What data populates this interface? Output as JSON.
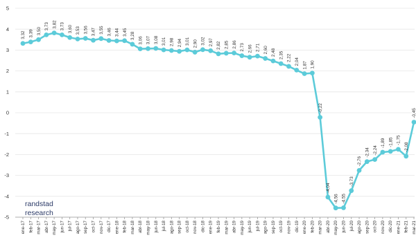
{
  "chart_data": {
    "type": "line",
    "color": "#5ccbd9",
    "categories": [
      "ene-17",
      "feb-17",
      "mar-17",
      "abr-17",
      "may-17",
      "jun-17",
      "jul-17",
      "ago-17",
      "sep-17",
      "oct-17",
      "nov-17",
      "dic-17",
      "ene-18",
      "feb-18",
      "mar-18",
      "abr-18",
      "may-18",
      "jun-18",
      "jul-18",
      "ago-18",
      "sep-18",
      "oct-18",
      "nov-18",
      "dic-18",
      "ene-19",
      "feb-19",
      "mar-19",
      "abr-19",
      "may-19",
      "jun-19",
      "jul-19",
      "ago-19",
      "sep-19",
      "oct-19",
      "nov-19",
      "dic-19",
      "ene-20",
      "feb-20",
      "mar-20",
      "abr-20",
      "may-20",
      "jun-20",
      "jul-20",
      "ago-20",
      "sep-20",
      "oct-20",
      "nov-20",
      "dic-20",
      "ene-21",
      "feb-21",
      "mar-21"
    ],
    "values": [
      3.32,
      3.39,
      3.5,
      3.73,
      3.82,
      3.73,
      3.6,
      3.53,
      3.56,
      3.47,
      3.55,
      3.46,
      3.44,
      3.45,
      3.28,
      3.06,
      3.07,
      3.08,
      3.01,
      2.98,
      2.94,
      3.01,
      2.9,
      3.02,
      2.97,
      2.82,
      2.85,
      2.86,
      2.73,
      2.66,
      2.71,
      2.6,
      2.48,
      2.35,
      2.22,
      2.04,
      1.87,
      1.9,
      -0.22,
      -4.04,
      -4.56,
      -4.55,
      -3.73,
      -2.76,
      -2.34,
      -2.24,
      -1.89,
      -1.85,
      -1.75,
      -2.08,
      -0.45
    ],
    "labels": [
      "3,32",
      "3,39",
      "3,50",
      "3,73",
      "3,82",
      "3,73",
      "3,60",
      "3,53",
      "3,56",
      "3,47",
      "3,55",
      "3,46",
      "3,44",
      "3,45",
      "3,28",
      "3,06",
      "3,07",
      "3,08",
      "3,01",
      "2,98",
      "2,94",
      "3,01",
      "2,90",
      "3,02",
      "2,97",
      "2,82",
      "2,85",
      "2,86",
      "2,73",
      "2,66",
      "2,71",
      "2,60",
      "2,48",
      "2,35",
      "2,22",
      "2,04",
      "1,87",
      "1,90",
      "-0,22",
      "-4,04",
      "-4,56",
      "-4,55",
      "-3,73",
      "-2,76",
      "-2,34",
      "-2,24",
      "-1,89",
      "-1,85",
      "-1,75",
      "-2,08",
      "-0,45"
    ],
    "yticks": [
      "5",
      "4",
      "3",
      "2",
      "1",
      "0",
      "-1",
      "-2",
      "-3",
      "-4",
      "-5"
    ],
    "ylim": [
      -5,
      5
    ],
    "grid": true
  },
  "brand": {
    "line1": "randstad",
    "line2": "research"
  }
}
